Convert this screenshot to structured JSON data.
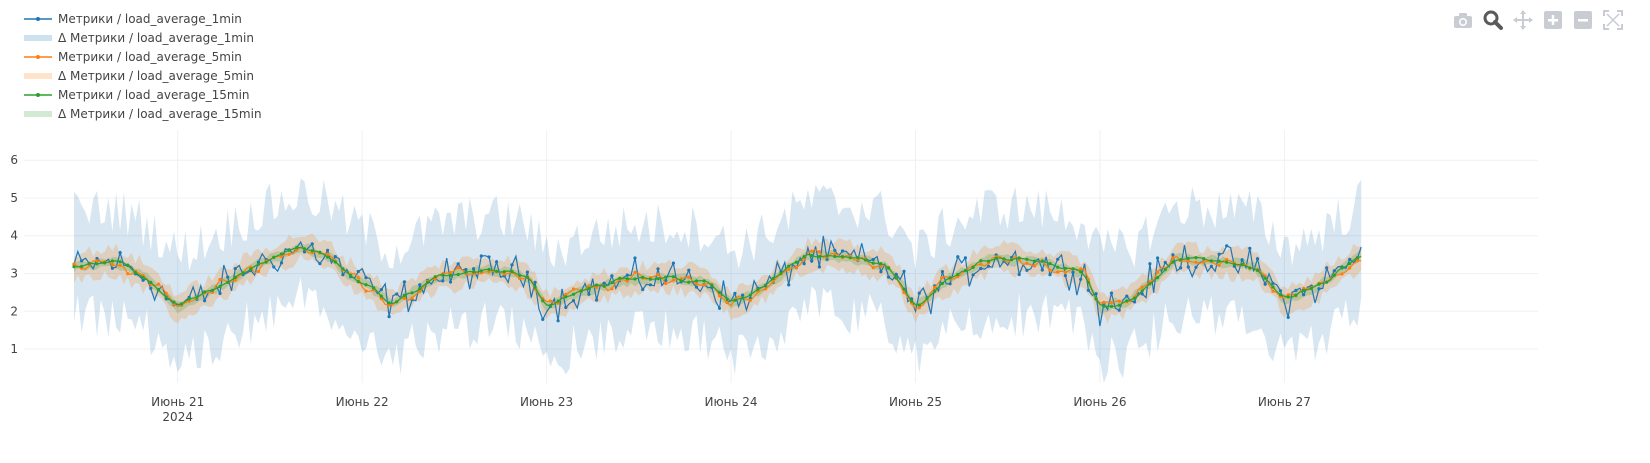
{
  "modebar": {
    "buttons": [
      {
        "name": "camera-icon",
        "icon": "camera",
        "active": false
      },
      {
        "name": "zoom-icon",
        "icon": "zoom",
        "active": true
      },
      {
        "name": "pan-icon",
        "icon": "pan",
        "active": false
      },
      {
        "name": "zoom-in-icon",
        "icon": "plus",
        "active": false
      },
      {
        "name": "zoom-out-icon",
        "icon": "minus",
        "active": false
      },
      {
        "name": "autoscale-icon",
        "icon": "autoscale",
        "active": false
      }
    ]
  },
  "chart_data": {
    "type": "line",
    "title": "",
    "xlabel": "",
    "ylabel": "",
    "grid": true,
    "legend_position": "top-left",
    "xlim": [
      "2024-06-20 04:00",
      "2024-06-28 09:00"
    ],
    "ylim": [
      0.1,
      6.8
    ],
    "x_ticks": [
      {
        "label": "Июнь 21",
        "sublabel": "2024",
        "day": "2024-06-21"
      },
      {
        "label": "Июнь 22",
        "sublabel": "",
        "day": "2024-06-22"
      },
      {
        "label": "Июнь 23",
        "sublabel": "",
        "day": "2024-06-23"
      },
      {
        "label": "Июнь 24",
        "sublabel": "",
        "day": "2024-06-24"
      },
      {
        "label": "Июнь 25",
        "sublabel": "",
        "day": "2024-06-25"
      },
      {
        "label": "Июнь 26",
        "sublabel": "",
        "day": "2024-06-26"
      },
      {
        "label": "Июнь 27",
        "sublabel": "",
        "day": "2024-06-27"
      }
    ],
    "y_ticks": [
      1,
      2,
      3,
      4,
      5,
      6
    ],
    "x_start": "2024-06-20 10:30",
    "x_end": "2024-06-27 10:00",
    "x_step_minutes": 30,
    "trend": {
      "x": [
        "2024-06-20 10:30",
        "2024-06-20 16:00",
        "2024-06-20 20:00",
        "2024-06-21 00:00",
        "2024-06-21 04:00",
        "2024-06-21 10:00",
        "2024-06-21 16:00",
        "2024-06-21 20:00",
        "2024-06-21 22:00",
        "2024-06-22 00:00",
        "2024-06-22 04:00",
        "2024-06-22 10:00",
        "2024-06-22 16:00",
        "2024-06-22 20:00",
        "2024-06-22 22:00",
        "2024-06-23 00:00",
        "2024-06-23 04:00",
        "2024-06-23 10:00",
        "2024-06-23 16:00",
        "2024-06-23 20:00",
        "2024-06-23 22:00",
        "2024-06-24 00:00",
        "2024-06-24 04:00",
        "2024-06-24 10:00",
        "2024-06-24 16:00",
        "2024-06-24 20:00",
        "2024-06-24 22:00",
        "2024-06-25 00:00",
        "2024-06-25 04:00",
        "2024-06-25 10:00",
        "2024-06-25 16:00",
        "2024-06-25 20:00",
        "2024-06-25 22:00",
        "2024-06-26 00:00",
        "2024-06-26 04:00",
        "2024-06-26 10:00",
        "2024-06-26 16:00",
        "2024-06-26 20:00",
        "2024-06-26 22:00",
        "2024-06-27 00:00",
        "2024-06-27 04:00",
        "2024-06-27 10:00"
      ],
      "y": [
        3.2,
        3.3,
        2.9,
        2.1,
        2.5,
        3.2,
        3.7,
        3.4,
        3.0,
        2.8,
        2.2,
        2.9,
        3.1,
        3.0,
        2.8,
        2.1,
        2.5,
        2.8,
        2.9,
        2.8,
        2.6,
        2.2,
        2.6,
        3.5,
        3.4,
        3.2,
        2.8,
        2.1,
        2.8,
        3.4,
        3.3,
        3.1,
        3.0,
        2.1,
        2.3,
        3.4,
        3.3,
        3.2,
        2.8,
        2.3,
        2.6,
        3.5
      ]
    },
    "series": [
      {
        "name": "Метрики / load_average_1min",
        "kind": "line",
        "color": "#1f77b4",
        "noise": 0.38,
        "smooth": 0
      },
      {
        "name": "Δ Метрики / load_average_1min",
        "kind": "band",
        "color": "#1f77b4",
        "band_halfwidth": 1.4
      },
      {
        "name": "Метрики / load_average_5min",
        "kind": "line",
        "color": "#ff7f0e",
        "noise": 0.22,
        "smooth": 1
      },
      {
        "name": "Δ Метрики / load_average_5min",
        "kind": "band",
        "color": "#ff7f0e",
        "band_halfwidth": 0.35
      },
      {
        "name": "Метрики / load_average_15min",
        "kind": "line",
        "color": "#2ca02c",
        "noise": 0.12,
        "smooth": 2
      },
      {
        "name": "Δ Метрики / load_average_15min",
        "kind": "band",
        "color": "#2ca02c",
        "band_halfwidth": 0.12
      }
    ]
  }
}
